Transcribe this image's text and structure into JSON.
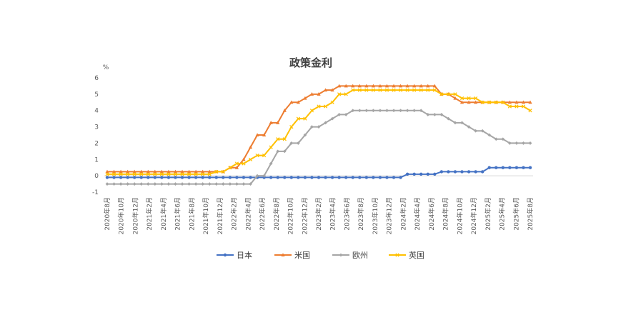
{
  "chart_data": {
    "type": "line",
    "title": "政策金利",
    "ylabel": "%",
    "ylim": [
      -1,
      6
    ],
    "yticks": [
      -1,
      0,
      1,
      2,
      3,
      4,
      5,
      6
    ],
    "grid": false,
    "legend_position": "bottom",
    "x_tick_labels": [
      "2020年8月",
      "2020年10月",
      "2020年12月",
      "2021年2月",
      "2021年4月",
      "2021年6月",
      "2021年8月",
      "2021年10月",
      "2021年12月",
      "2022年2月",
      "2022年4月",
      "2022年6月",
      "2022年8月",
      "2022年10月",
      "2022年12月",
      "2023年2月",
      "2023年4月",
      "2023年6月",
      "2023年8月",
      "2023年10月",
      "2023年12月",
      "2024年2月",
      "2024年4月",
      "2024年6月",
      "2024年8月",
      "2024年10月",
      "2024年12月",
      "2025年2月",
      "2025年4月",
      "2025年6月",
      "2025年8月"
    ],
    "series": [
      {
        "name": "日本",
        "color": "#4472C4",
        "marker": "circle",
        "values": [
          -0.1,
          -0.1,
          -0.1,
          -0.1,
          -0.1,
          -0.1,
          -0.1,
          -0.1,
          -0.1,
          -0.1,
          -0.1,
          -0.1,
          -0.1,
          -0.1,
          -0.1,
          -0.1,
          -0.1,
          -0.1,
          -0.1,
          -0.1,
          -0.1,
          -0.1,
          -0.1,
          -0.1,
          -0.1,
          -0.1,
          -0.1,
          -0.1,
          -0.1,
          -0.1,
          -0.1,
          -0.1,
          -0.1,
          -0.1,
          -0.1,
          -0.1,
          -0.1,
          -0.1,
          -0.1,
          -0.1,
          -0.1,
          -0.1,
          -0.1,
          -0.1,
          0.1,
          0.1,
          0.1,
          0.1,
          0.1,
          0.25,
          0.25,
          0.25,
          0.25,
          0.25,
          0.25,
          0.25,
          0.5,
          0.5,
          0.5,
          0.5,
          0.5,
          0.5,
          0.5
        ]
      },
      {
        "name": "米国",
        "color": "#ED7D31",
        "marker": "triangle",
        "values": [
          0.25,
          0.25,
          0.25,
          0.25,
          0.25,
          0.25,
          0.25,
          0.25,
          0.25,
          0.25,
          0.25,
          0.25,
          0.25,
          0.25,
          0.25,
          0.25,
          0.25,
          0.25,
          0.5,
          0.5,
          1.0,
          1.75,
          2.5,
          2.5,
          3.25,
          3.25,
          4.0,
          4.5,
          4.5,
          4.75,
          5.0,
          5.0,
          5.25,
          5.25,
          5.5,
          5.5,
          5.5,
          5.5,
          5.5,
          5.5,
          5.5,
          5.5,
          5.5,
          5.5,
          5.5,
          5.5,
          5.5,
          5.5,
          5.5,
          5.0,
          5.0,
          4.75,
          4.5,
          4.5,
          4.5,
          4.5,
          4.5,
          4.5,
          4.5,
          4.5,
          4.5,
          4.5,
          4.5
        ]
      },
      {
        "name": "欧州",
        "color": "#A5A5A5",
        "marker": "diamond",
        "values": [
          -0.5,
          -0.5,
          -0.5,
          -0.5,
          -0.5,
          -0.5,
          -0.5,
          -0.5,
          -0.5,
          -0.5,
          -0.5,
          -0.5,
          -0.5,
          -0.5,
          -0.5,
          -0.5,
          -0.5,
          -0.5,
          -0.5,
          -0.5,
          -0.5,
          -0.5,
          0.0,
          0.0,
          0.75,
          1.5,
          1.5,
          2.0,
          2.0,
          2.5,
          3.0,
          3.0,
          3.25,
          3.5,
          3.75,
          3.75,
          4.0,
          4.0,
          4.0,
          4.0,
          4.0,
          4.0,
          4.0,
          4.0,
          4.0,
          4.0,
          4.0,
          3.75,
          3.75,
          3.75,
          3.5,
          3.25,
          3.25,
          3.0,
          2.75,
          2.75,
          2.5,
          2.25,
          2.25,
          2.0,
          2.0,
          2.0,
          2.0
        ]
      },
      {
        "name": "英国",
        "color": "#FFC000",
        "marker": "cross",
        "values": [
          0.1,
          0.1,
          0.1,
          0.1,
          0.1,
          0.1,
          0.1,
          0.1,
          0.1,
          0.1,
          0.1,
          0.1,
          0.1,
          0.1,
          0.1,
          0.1,
          0.25,
          0.25,
          0.5,
          0.75,
          0.75,
          1.0,
          1.25,
          1.25,
          1.75,
          2.25,
          2.25,
          3.0,
          3.5,
          3.5,
          4.0,
          4.25,
          4.25,
          4.5,
          5.0,
          5.0,
          5.25,
          5.25,
          5.25,
          5.25,
          5.25,
          5.25,
          5.25,
          5.25,
          5.25,
          5.25,
          5.25,
          5.25,
          5.25,
          5.0,
          5.0,
          5.0,
          4.75,
          4.75,
          4.75,
          4.5,
          4.5,
          4.5,
          4.5,
          4.25,
          4.25,
          4.25,
          4.0
        ]
      }
    ]
  }
}
